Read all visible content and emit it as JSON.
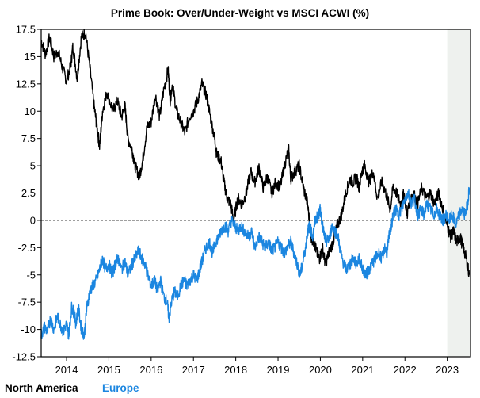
{
  "chart_data": {
    "type": "line",
    "title": "Prime Book: Over/Under-Weight vs MSCI ACWI (%)",
    "xlabel": "",
    "ylabel": "",
    "xlim": [
      2013.4,
      2023.55
    ],
    "ylim": [
      -12.5,
      17.5
    ],
    "y_ticks": [
      17.5,
      15,
      12.5,
      10,
      7.5,
      5,
      2.5,
      0,
      -2.5,
      -5,
      -7.5,
      -10,
      -12.5
    ],
    "y_tick_labels": [
      "17.5",
      "15",
      "12.5",
      "10",
      "7.5",
      "5",
      "2.5",
      "0",
      "-2.5",
      "-5",
      "-7.5",
      "-10",
      "-12.5"
    ],
    "x_ticks": [
      2014,
      2015,
      2016,
      2017,
      2018,
      2019,
      2020,
      2021,
      2022,
      2023
    ],
    "x_tick_labels": [
      "2014",
      "2015",
      "2016",
      "2017",
      "2018",
      "2019",
      "2020",
      "2021",
      "2022",
      "2023"
    ],
    "zero_line": "dashed",
    "shaded_region": {
      "x_start": 2023.0,
      "x_end": 2023.55,
      "color": "#eef1ee"
    },
    "legend_position": "bottom-left",
    "series": [
      {
        "name": "North America",
        "color": "#000000",
        "points": [
          [
            2013.4,
            16.5
          ],
          [
            2013.5,
            15.2
          ],
          [
            2013.6,
            16.8
          ],
          [
            2013.7,
            15.0
          ],
          [
            2013.8,
            15.5
          ],
          [
            2013.9,
            14.0
          ],
          [
            2014.0,
            12.8
          ],
          [
            2014.1,
            14.2
          ],
          [
            2014.15,
            16.0
          ],
          [
            2014.25,
            13.0
          ],
          [
            2014.35,
            16.8
          ],
          [
            2014.45,
            17.2
          ],
          [
            2014.55,
            14.0
          ],
          [
            2014.65,
            10.5
          ],
          [
            2014.72,
            8.5
          ],
          [
            2014.78,
            6.8
          ],
          [
            2014.85,
            10.0
          ],
          [
            2014.95,
            11.8
          ],
          [
            2015.1,
            10.0
          ],
          [
            2015.2,
            11.0
          ],
          [
            2015.3,
            9.5
          ],
          [
            2015.38,
            10.5
          ],
          [
            2015.45,
            7.5
          ],
          [
            2015.55,
            6.5
          ],
          [
            2015.62,
            5.0
          ],
          [
            2015.72,
            4.0
          ],
          [
            2015.8,
            5.5
          ],
          [
            2015.9,
            8.5
          ],
          [
            2016.0,
            9.0
          ],
          [
            2016.1,
            11.5
          ],
          [
            2016.2,
            9.5
          ],
          [
            2016.3,
            12.0
          ],
          [
            2016.4,
            13.8
          ],
          [
            2016.45,
            11.0
          ],
          [
            2016.5,
            12.5
          ],
          [
            2016.6,
            10.0
          ],
          [
            2016.7,
            9.0
          ],
          [
            2016.8,
            8.0
          ],
          [
            2016.9,
            9.5
          ],
          [
            2017.0,
            10.0
          ],
          [
            2017.1,
            11.0
          ],
          [
            2017.2,
            12.5
          ],
          [
            2017.3,
            11.5
          ],
          [
            2017.4,
            9.5
          ],
          [
            2017.5,
            7.5
          ],
          [
            2017.55,
            6.0
          ],
          [
            2017.65,
            5.5
          ],
          [
            2017.72,
            3.5
          ],
          [
            2017.8,
            2.0
          ],
          [
            2017.88,
            1.5
          ],
          [
            2017.95,
            0.0
          ],
          [
            2018.05,
            2.0
          ],
          [
            2018.15,
            1.5
          ],
          [
            2018.25,
            2.5
          ],
          [
            2018.35,
            4.5
          ],
          [
            2018.45,
            3.5
          ],
          [
            2018.55,
            4.8
          ],
          [
            2018.65,
            3.0
          ],
          [
            2018.75,
            4.0
          ],
          [
            2018.85,
            2.5
          ],
          [
            2018.95,
            3.5
          ],
          [
            2019.05,
            3.0
          ],
          [
            2019.15,
            5.0
          ],
          [
            2019.25,
            6.5
          ],
          [
            2019.3,
            3.8
          ],
          [
            2019.4,
            4.5
          ],
          [
            2019.5,
            5.0
          ],
          [
            2019.6,
            3.0
          ],
          [
            2019.7,
            1.5
          ],
          [
            2019.78,
            -1.5
          ],
          [
            2019.85,
            -2.0
          ],
          [
            2019.92,
            -3.0
          ],
          [
            2019.98,
            -3.5
          ],
          [
            2020.05,
            -2.5
          ],
          [
            2020.12,
            -4.0
          ],
          [
            2020.2,
            -3.0
          ],
          [
            2020.3,
            -2.0
          ],
          [
            2020.4,
            -0.5
          ],
          [
            2020.5,
            0.5
          ],
          [
            2020.6,
            2.5
          ],
          [
            2020.7,
            3.8
          ],
          [
            2020.78,
            3.5
          ],
          [
            2020.85,
            4.0
          ],
          [
            2020.92,
            3.0
          ],
          [
            2020.98,
            4.5
          ],
          [
            2021.05,
            5.0
          ],
          [
            2021.15,
            3.5
          ],
          [
            2021.25,
            4.5
          ],
          [
            2021.35,
            2.0
          ],
          [
            2021.45,
            3.5
          ],
          [
            2021.55,
            2.5
          ],
          [
            2021.65,
            1.0
          ],
          [
            2021.72,
            3.0
          ],
          [
            2021.8,
            2.5
          ],
          [
            2021.9,
            1.5
          ],
          [
            2021.98,
            2.5
          ],
          [
            2022.05,
            0.5
          ],
          [
            2022.12,
            2.0
          ],
          [
            2022.2,
            2.5
          ],
          [
            2022.3,
            1.5
          ],
          [
            2022.4,
            3.0
          ],
          [
            2022.5,
            2.0
          ],
          [
            2022.6,
            2.5
          ],
          [
            2022.7,
            1.5
          ],
          [
            2022.8,
            2.5
          ],
          [
            2022.9,
            1.0
          ],
          [
            2023.0,
            -0.5
          ],
          [
            2023.08,
            -1.5
          ],
          [
            2023.15,
            -1.0
          ],
          [
            2023.22,
            -2.0
          ],
          [
            2023.3,
            -1.5
          ],
          [
            2023.38,
            -2.5
          ],
          [
            2023.45,
            -3.5
          ],
          [
            2023.52,
            -5.0
          ]
        ]
      },
      {
        "name": "Europe",
        "color": "#1b86e0",
        "points": [
          [
            2013.4,
            -10.5
          ],
          [
            2013.48,
            -9.8
          ],
          [
            2013.55,
            -10.2
          ],
          [
            2013.62,
            -9.0
          ],
          [
            2013.7,
            -10.0
          ],
          [
            2013.78,
            -8.8
          ],
          [
            2013.85,
            -9.5
          ],
          [
            2013.92,
            -10.2
          ],
          [
            2014.0,
            -9.5
          ],
          [
            2014.05,
            -10.5
          ],
          [
            2014.12,
            -8.0
          ],
          [
            2014.18,
            -8.5
          ],
          [
            2014.22,
            -9.5
          ],
          [
            2014.28,
            -8.0
          ],
          [
            2014.35,
            -10.0
          ],
          [
            2014.42,
            -10.5
          ],
          [
            2014.48,
            -8.0
          ],
          [
            2014.55,
            -6.5
          ],
          [
            2014.62,
            -6.0
          ],
          [
            2014.7,
            -5.5
          ],
          [
            2014.78,
            -4.5
          ],
          [
            2014.85,
            -3.5
          ],
          [
            2014.92,
            -4.5
          ],
          [
            2015.0,
            -4.0
          ],
          [
            2015.08,
            -5.0
          ],
          [
            2015.15,
            -4.0
          ],
          [
            2015.22,
            -3.5
          ],
          [
            2015.3,
            -4.5
          ],
          [
            2015.38,
            -3.8
          ],
          [
            2015.45,
            -5.0
          ],
          [
            2015.55,
            -4.0
          ],
          [
            2015.62,
            -3.5
          ],
          [
            2015.7,
            -2.8
          ],
          [
            2015.78,
            -3.5
          ],
          [
            2015.85,
            -4.0
          ],
          [
            2015.92,
            -5.0
          ],
          [
            2016.0,
            -6.0
          ],
          [
            2016.08,
            -5.5
          ],
          [
            2016.15,
            -6.5
          ],
          [
            2016.22,
            -5.5
          ],
          [
            2016.3,
            -7.0
          ],
          [
            2016.38,
            -7.5
          ],
          [
            2016.42,
            -9.0
          ],
          [
            2016.48,
            -7.5
          ],
          [
            2016.55,
            -6.5
          ],
          [
            2016.62,
            -7.0
          ],
          [
            2016.7,
            -6.0
          ],
          [
            2016.78,
            -5.5
          ],
          [
            2016.85,
            -6.0
          ],
          [
            2016.92,
            -5.5
          ],
          [
            2017.0,
            -5.0
          ],
          [
            2017.08,
            -5.5
          ],
          [
            2017.15,
            -4.5
          ],
          [
            2017.22,
            -3.5
          ],
          [
            2017.3,
            -2.5
          ],
          [
            2017.38,
            -2.0
          ],
          [
            2017.45,
            -3.0
          ],
          [
            2017.52,
            -2.0
          ],
          [
            2017.6,
            -1.5
          ],
          [
            2017.68,
            -0.8
          ],
          [
            2017.75,
            -0.5
          ],
          [
            2017.82,
            -1.0
          ],
          [
            2017.9,
            0.0
          ],
          [
            2017.98,
            -0.5
          ],
          [
            2018.05,
            -1.0
          ],
          [
            2018.12,
            -0.5
          ],
          [
            2018.2,
            -1.0
          ],
          [
            2018.3,
            -1.5
          ],
          [
            2018.38,
            -1.0
          ],
          [
            2018.45,
            -2.5
          ],
          [
            2018.55,
            -1.5
          ],
          [
            2018.62,
            -2.0
          ],
          [
            2018.7,
            -2.5
          ],
          [
            2018.78,
            -2.0
          ],
          [
            2018.85,
            -2.8
          ],
          [
            2018.92,
            -2.5
          ],
          [
            2019.0,
            -2.0
          ],
          [
            2019.08,
            -2.5
          ],
          [
            2019.15,
            -3.0
          ],
          [
            2019.22,
            -2.5
          ],
          [
            2019.3,
            -2.0
          ],
          [
            2019.38,
            -3.0
          ],
          [
            2019.45,
            -4.0
          ],
          [
            2019.52,
            -5.0
          ],
          [
            2019.58,
            -4.0
          ],
          [
            2019.65,
            -2.5
          ],
          [
            2019.7,
            -1.0
          ],
          [
            2019.75,
            -0.5
          ],
          [
            2019.82,
            -1.5
          ],
          [
            2019.88,
            0.0
          ],
          [
            2019.95,
            0.5
          ],
          [
            2020.0,
            1.0
          ],
          [
            2020.05,
            -0.5
          ],
          [
            2020.1,
            -1.5
          ],
          [
            2020.15,
            -2.0
          ],
          [
            2020.22,
            -1.5
          ],
          [
            2020.28,
            -0.5
          ],
          [
            2020.35,
            -1.0
          ],
          [
            2020.42,
            -1.5
          ],
          [
            2020.48,
            -3.0
          ],
          [
            2020.55,
            -4.0
          ],
          [
            2020.62,
            -4.5
          ],
          [
            2020.7,
            -4.0
          ],
          [
            2020.78,
            -3.5
          ],
          [
            2020.85,
            -4.0
          ],
          [
            2020.92,
            -3.5
          ],
          [
            2021.0,
            -4.5
          ],
          [
            2021.08,
            -5.0
          ],
          [
            2021.15,
            -4.5
          ],
          [
            2021.22,
            -4.0
          ],
          [
            2021.3,
            -3.5
          ],
          [
            2021.38,
            -3.0
          ],
          [
            2021.45,
            -3.5
          ],
          [
            2021.52,
            -2.5
          ],
          [
            2021.58,
            -3.0
          ],
          [
            2021.62,
            -1.5
          ],
          [
            2021.68,
            -0.5
          ],
          [
            2021.72,
            0.5
          ],
          [
            2021.78,
            1.0
          ],
          [
            2021.85,
            0.5
          ],
          [
            2021.92,
            1.0
          ],
          [
            2022.0,
            2.0
          ],
          [
            2022.08,
            2.5
          ],
          [
            2022.15,
            1.5
          ],
          [
            2022.22,
            2.0
          ],
          [
            2022.3,
            0.5
          ],
          [
            2022.38,
            1.0
          ],
          [
            2022.45,
            0.5
          ],
          [
            2022.52,
            1.5
          ],
          [
            2022.6,
            1.0
          ],
          [
            2022.68,
            0.5
          ],
          [
            2022.75,
            1.0
          ],
          [
            2022.82,
            0.5
          ],
          [
            2022.9,
            0.0
          ],
          [
            2022.98,
            0.5
          ],
          [
            2023.05,
            0.0
          ],
          [
            2023.12,
            0.5
          ],
          [
            2023.2,
            -0.5
          ],
          [
            2023.28,
            0.5
          ],
          [
            2023.35,
            1.0
          ],
          [
            2023.42,
            0.5
          ],
          [
            2023.48,
            1.5
          ],
          [
            2023.52,
            3.0
          ]
        ]
      }
    ]
  }
}
